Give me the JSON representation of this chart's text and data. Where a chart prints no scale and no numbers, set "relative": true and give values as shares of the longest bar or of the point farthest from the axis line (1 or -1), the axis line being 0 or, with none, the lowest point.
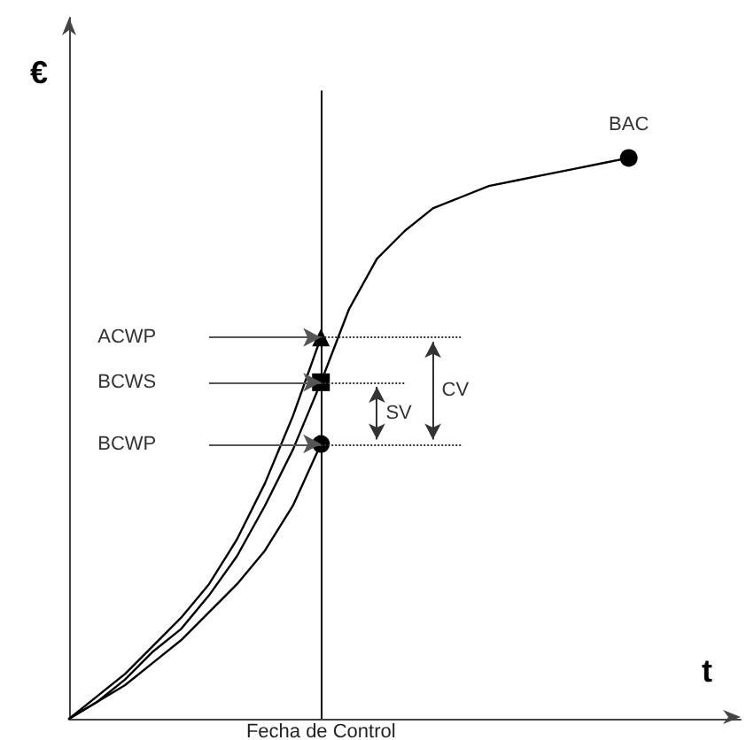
{
  "chart_data": {
    "type": "line",
    "relative": true,
    "xlabel": "t",
    "ylabel": "€",
    "categories": [
      null,
      null,
      null,
      null,
      null,
      null,
      null,
      null,
      null,
      null,
      null,
      null,
      null,
      null,
      null,
      null,
      null,
      null,
      null,
      null,
      null,
      null,
      null,
      null,
      null
    ],
    "grid": false,
    "legend": false,
    "line_style": "solid",
    "series": [
      {
        "color": "#000000",
        "values": [
          0,
          0.04,
          0.08,
          0.13,
          0.18,
          0.24,
          0.32,
          0.42,
          0.54,
          0.68,
          null,
          null,
          null,
          null,
          null,
          null,
          null,
          null,
          null,
          null,
          null,
          null,
          null,
          null,
          null
        ]
      },
      {
        "color": "#000000",
        "values": [
          0,
          0.03,
          0.07,
          0.12,
          0.16,
          0.22,
          0.29,
          0.38,
          0.48,
          0.6,
          0.73,
          0.82,
          0.87,
          0.91,
          0.93,
          0.95,
          0.96,
          0.97,
          0.98,
          0.99,
          1,
          null,
          null,
          null,
          null
        ]
      },
      {
        "color": "#000000",
        "values": [
          0,
          0.03,
          0.06,
          0.1,
          0.14,
          0.19,
          0.24,
          0.3,
          0.38,
          0.49,
          null,
          null,
          null,
          null,
          null,
          null,
          null,
          null,
          null,
          null,
          null,
          null,
          null,
          null,
          null
        ]
      }
    ],
    "annotations": [
      "ACWP",
      "BCWS",
      "BCWP",
      {
        "text": "BAC",
        "y": 1
      },
      "SV",
      "CV"
    ],
    "ref_lines": [
      {
        "axis": "x",
        "value": "Fecha de Control",
        "color": "#000000"
      },
      {
        "axis": "y",
        "value": 0.68,
        "color": "#333333",
        "line_style": "dotted"
      },
      {
        "axis": "y",
        "value": 0.6,
        "color": "#333333",
        "line_style": "dotted"
      },
      {
        "axis": "y",
        "value": 0.49,
        "color": "#333333",
        "line_style": "dotted"
      }
    ]
  }
}
